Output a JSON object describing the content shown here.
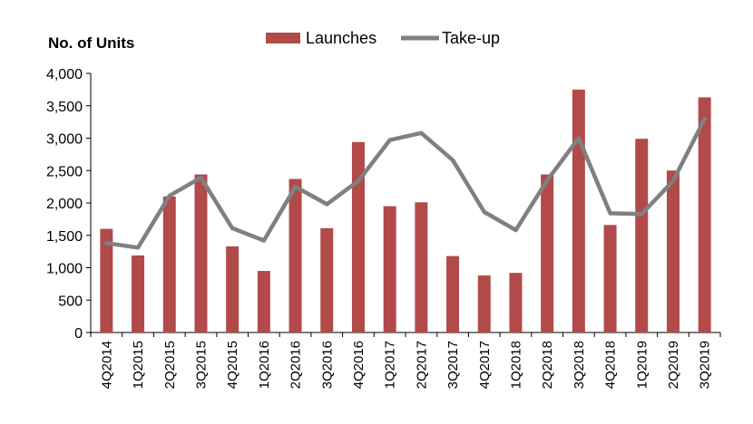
{
  "chart_data": {
    "type": "bar",
    "ylabel": "No. of Units",
    "ylim": [
      0,
      4000
    ],
    "yticks": [
      0,
      500,
      1000,
      1500,
      2000,
      2500,
      3000,
      3500,
      4000
    ],
    "ytick_labels": [
      "0",
      "500",
      "1,000",
      "1,500",
      "2,000",
      "2,500",
      "3,000",
      "3,500",
      "4,000"
    ],
    "categories": [
      "4Q2014",
      "1Q2015",
      "2Q2015",
      "3Q2015",
      "4Q2015",
      "1Q2016",
      "2Q2016",
      "3Q2016",
      "4Q2016",
      "1Q2017",
      "2Q2017",
      "3Q2017",
      "4Q2017",
      "1Q2018",
      "2Q2018",
      "3Q2018",
      "4Q2018",
      "1Q2019",
      "2Q2019",
      "3Q2019"
    ],
    "series": [
      {
        "name": "Launches",
        "kind": "bar",
        "color": "#b24a4a",
        "values": [
          1600,
          1190,
          2100,
          2440,
          1330,
          950,
          2370,
          1610,
          2940,
          1950,
          2010,
          1180,
          880,
          920,
          2440,
          3750,
          1660,
          2990,
          2500,
          3630
        ]
      },
      {
        "name": "Take-up",
        "kind": "line",
        "color": "#808080",
        "values": [
          1380,
          1310,
          2110,
          2390,
          1610,
          1420,
          2250,
          1980,
          2340,
          2970,
          3080,
          2660,
          1860,
          1580,
          2350,
          3000,
          1840,
          1830,
          2340,
          3300
        ]
      }
    ],
    "legend_position": "top-center",
    "grid": false
  }
}
